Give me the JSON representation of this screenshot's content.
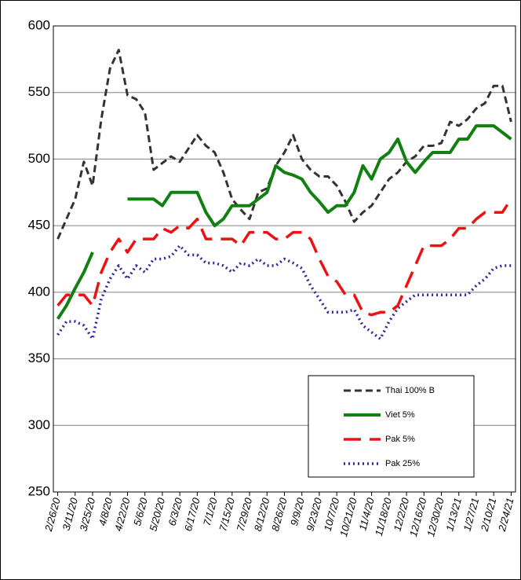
{
  "chart_data": {
    "type": "line",
    "categories": [
      "2/26/20",
      null,
      "3/11/20",
      null,
      "3/25/20",
      null,
      "4/8/20",
      null,
      "4/22/20",
      null,
      "5/6/20",
      null,
      "5/20/20",
      null,
      "6/3/20",
      null,
      "6/17/20",
      null,
      "7/1/20",
      null,
      "7/15/20",
      null,
      "7/29/20",
      null,
      "8/12/20",
      null,
      "8/26/20",
      null,
      "9/9/20",
      null,
      "9/23/20",
      null,
      "10/7/20",
      null,
      "10/21/20",
      null,
      "11/4/20",
      null,
      "11/18/20",
      null,
      "12/2/20",
      null,
      "12/16/20",
      null,
      "12/30/20",
      null,
      "1/13/21",
      null,
      "1/27/21",
      null,
      "2/10/21",
      null,
      "2/24/21"
    ],
    "series": [
      {
        "name": "Thai 100% B",
        "color": "#333333",
        "linestyle": "dashed",
        "values": [
          440,
          455,
          470,
          498,
          480,
          530,
          568,
          582,
          548,
          545,
          535,
          492,
          497,
          502,
          498,
          508,
          518,
          510,
          505,
          490,
          470,
          462,
          455,
          475,
          478,
          495,
          505,
          518,
          500,
          492,
          487,
          487,
          480,
          468,
          453,
          460,
          465,
          475,
          485,
          490,
          498,
          502,
          510,
          510,
          512,
          528,
          525,
          530,
          538,
          542,
          555,
          555,
          528
        ]
      },
      {
        "name": "Viet 5%",
        "color": "#108010",
        "linestyle": "solid",
        "values": [
          380,
          390,
          403,
          415,
          430,
          null,
          null,
          null,
          470,
          470,
          470,
          470,
          465,
          475,
          475,
          475,
          475,
          460,
          450,
          455,
          465,
          465,
          465,
          470,
          475,
          495,
          490,
          488,
          485,
          475,
          468,
          460,
          465,
          465,
          475,
          495,
          485,
          500,
          505,
          515,
          498,
          490,
          498,
          505,
          505,
          505,
          515,
          515,
          525,
          525,
          525,
          520,
          515
        ]
      },
      {
        "name": "Pak 5%",
        "color": "#ee1111",
        "linestyle": "long-dashed",
        "values": [
          390,
          398,
          398,
          398,
          390,
          415,
          430,
          440,
          430,
          440,
          440,
          440,
          448,
          445,
          450,
          448,
          455,
          440,
          440,
          440,
          440,
          435,
          445,
          445,
          445,
          440,
          440,
          445,
          445,
          440,
          425,
          412,
          408,
          398,
          398,
          385,
          383,
          385,
          385,
          390,
          405,
          420,
          435,
          435,
          435,
          440,
          448,
          448,
          455,
          460,
          460,
          460,
          470
        ]
      },
      {
        "name": "Pak 25%",
        "color": "#2a2a9a",
        "linestyle": "dotted",
        "values": [
          368,
          378,
          378,
          375,
          365,
          395,
          410,
          420,
          410,
          420,
          415,
          425,
          425,
          427,
          435,
          428,
          428,
          422,
          422,
          420,
          415,
          422,
          420,
          425,
          420,
          420,
          425,
          422,
          418,
          405,
          395,
          385,
          385,
          385,
          387,
          375,
          370,
          365,
          378,
          388,
          393,
          398,
          398,
          398,
          398,
          398,
          398,
          398,
          405,
          410,
          418,
          420,
          420
        ]
      }
    ],
    "ylim": [
      250,
      600
    ],
    "yticks": [
      250,
      300,
      350,
      400,
      450,
      500,
      550,
      600
    ],
    "grid": true,
    "legend": "lower right"
  }
}
